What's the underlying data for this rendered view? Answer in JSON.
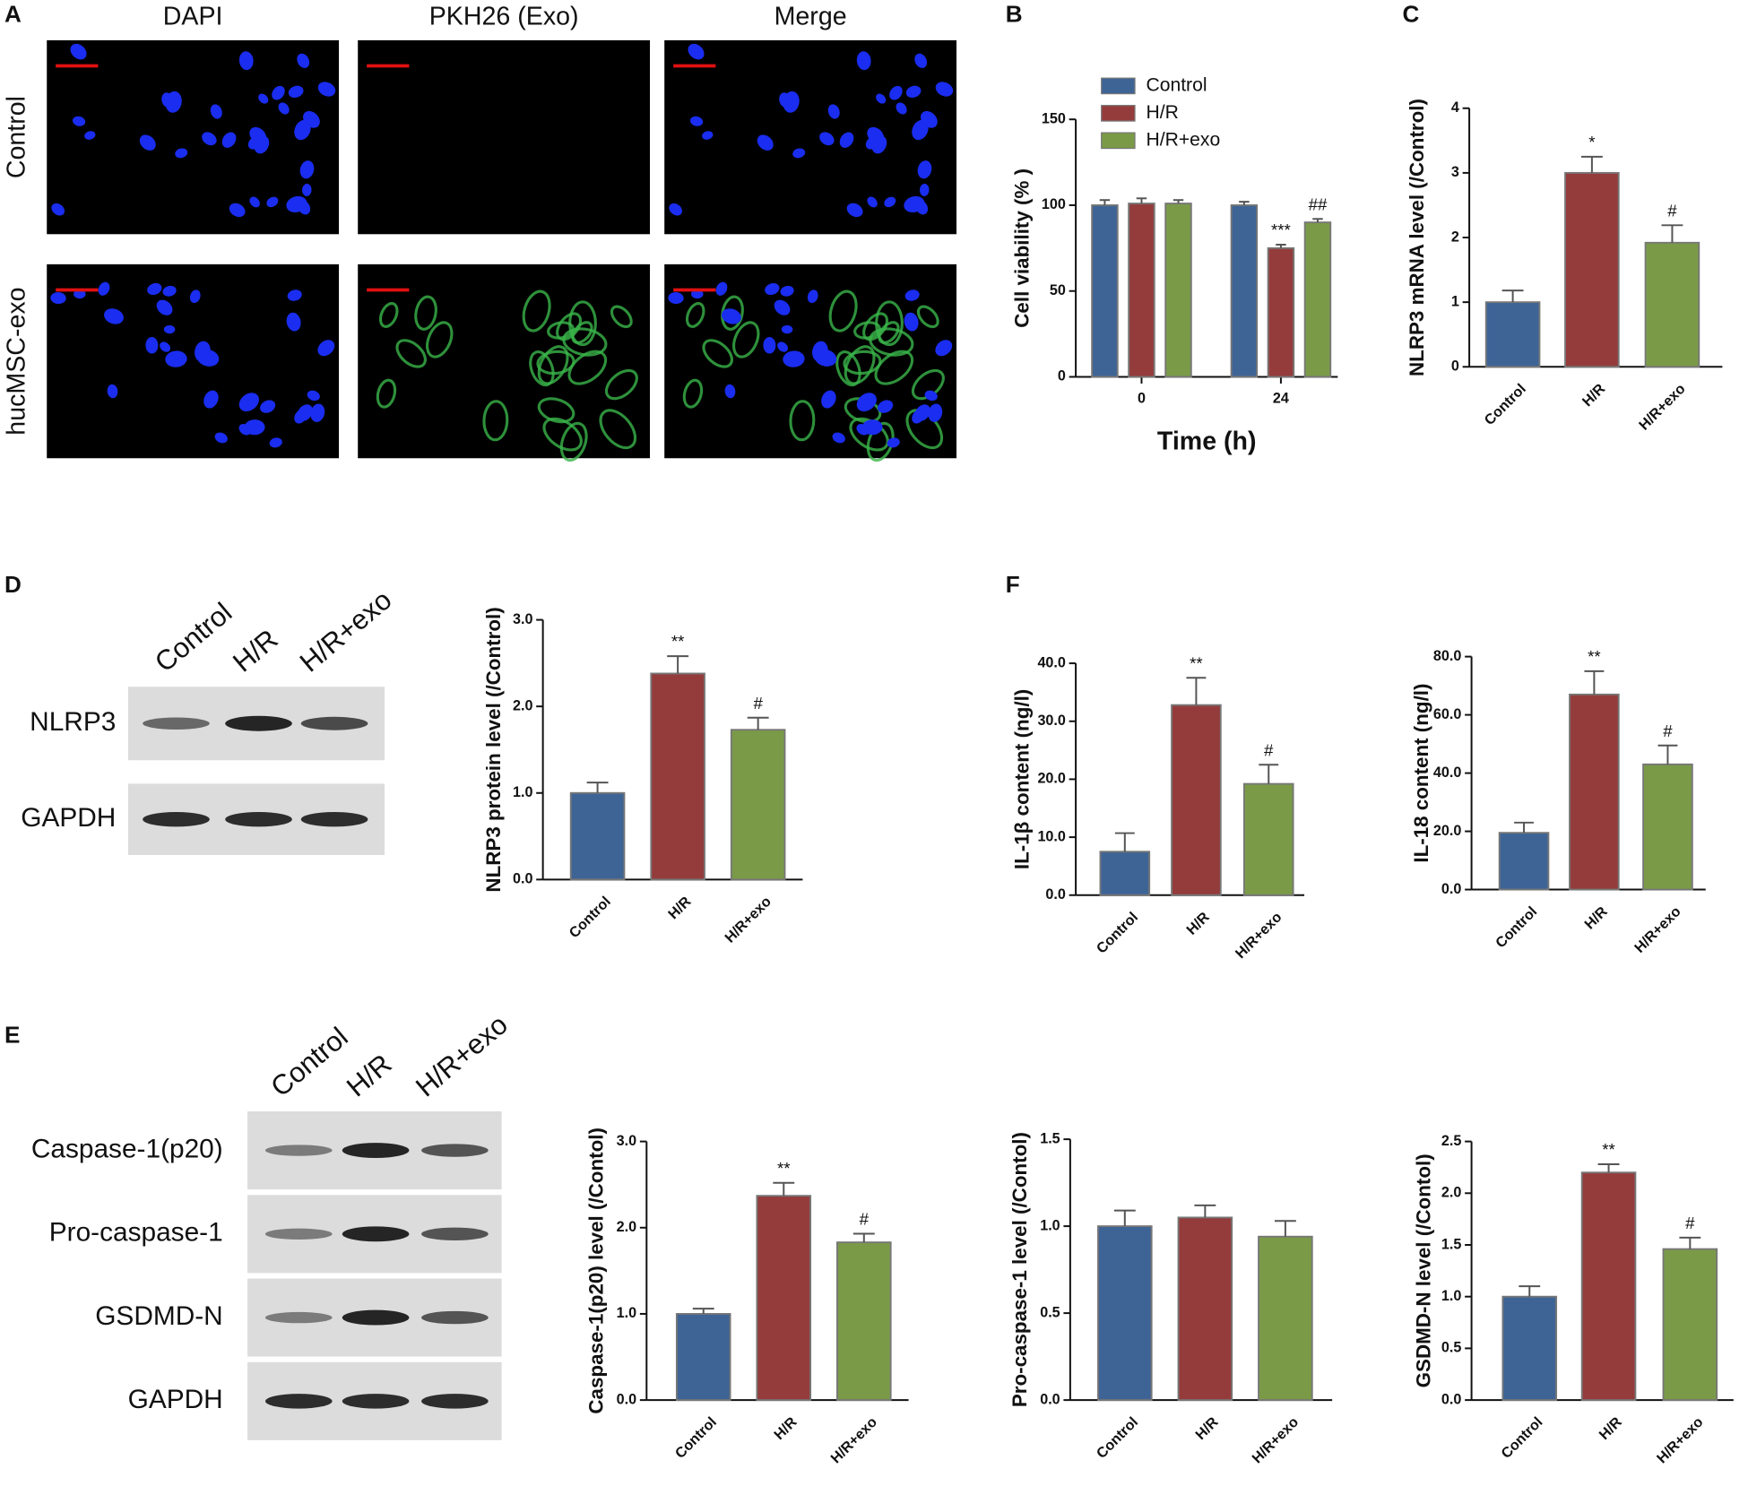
{
  "panel_labels": [
    "A",
    "B",
    "C",
    "D",
    "E",
    "F"
  ],
  "micrographs": {
    "columns": [
      "DAPI",
      "PKH26 (Exo)",
      "Merge"
    ],
    "rows": [
      "Control",
      "hucMSC-exo"
    ]
  },
  "blot_D": {
    "lanes": [
      "Control",
      "H/R",
      "H/R+exo"
    ],
    "rows": [
      "NLRP3",
      "GAPDH"
    ]
  },
  "blot_E": {
    "lanes": [
      "Control",
      "H/R",
      "H/R+exo"
    ],
    "rows": [
      "Caspase-1(p20)",
      "Pro-caspase-1",
      "GSDMD-N",
      "GAPDH"
    ]
  },
  "chart_data": [
    {
      "type": "grouped_bar",
      "xlabel": "Time (h)",
      "ylabel": "Cell viability (% )",
      "categories": [
        "0",
        "24"
      ],
      "ylim": [
        0,
        150
      ],
      "yticks": [
        0,
        50,
        100,
        150
      ],
      "grid": false,
      "legend": "top-left",
      "series": [
        {
          "name": "Control",
          "color": "#3e6496",
          "values": [
            100,
            100
          ],
          "errors": [
            3,
            2
          ],
          "annotations": [
            null,
            null
          ]
        },
        {
          "name": "H/R",
          "color": "#943c3c",
          "values": [
            101,
            75
          ],
          "errors": [
            3,
            2
          ],
          "annotations": [
            null,
            "***"
          ]
        },
        {
          "name": "H/R+exo",
          "color": "#7a9a48",
          "values": [
            101,
            90
          ],
          "errors": [
            2,
            2
          ],
          "annotations": [
            null,
            "##"
          ]
        }
      ]
    },
    {
      "type": "bar",
      "ylabel": "NLRP3 mRNA level (/Control)",
      "categories": [
        "Control",
        "H/R",
        "H/R+exo"
      ],
      "colors": [
        "#3e6496",
        "#943c3c",
        "#7a9a48"
      ],
      "values": [
        1.0,
        3.0,
        1.92
      ],
      "errors": [
        0.18,
        0.25,
        0.27
      ],
      "annotations": [
        null,
        "*",
        "#"
      ],
      "ylim": [
        0,
        4
      ],
      "yticks": [
        0,
        1,
        2,
        3,
        4
      ],
      "grid": false
    },
    {
      "type": "bar",
      "ylabel": "NLRP3 protein level (/Control)",
      "categories": [
        "Control",
        "H/R",
        "H/R+exo"
      ],
      "colors": [
        "#3e6496",
        "#943c3c",
        "#7a9a48"
      ],
      "values": [
        1.0,
        2.38,
        1.73
      ],
      "errors": [
        0.12,
        0.2,
        0.14
      ],
      "annotations": [
        null,
        "**",
        "#"
      ],
      "ylim": [
        0,
        3
      ],
      "yticks": [
        {
          "value": 0,
          "label": "0.0"
        },
        {
          "value": 1,
          "label": "1.0"
        },
        {
          "value": 2,
          "label": "2.0"
        },
        {
          "value": 3,
          "label": "3.0"
        }
      ],
      "grid": false
    },
    {
      "type": "bar",
      "ylabel": "IL-1β content  (ng/l)",
      "categories": [
        "Control",
        "H/R",
        "H/R+exo"
      ],
      "colors": [
        "#3e6496",
        "#943c3c",
        "#7a9a48"
      ],
      "values": [
        7.5,
        32.8,
        19.2
      ],
      "errors": [
        3.2,
        4.7,
        3.3
      ],
      "annotations": [
        null,
        "**",
        "#"
      ],
      "ylim": [
        0,
        40
      ],
      "yticks": [
        {
          "value": 0,
          "label": "0.0"
        },
        {
          "value": 10,
          "label": "10.0"
        },
        {
          "value": 20,
          "label": "20.0"
        },
        {
          "value": 30,
          "label": "30.0"
        },
        {
          "value": 40,
          "label": "40.0"
        }
      ],
      "grid": false
    },
    {
      "type": "bar",
      "ylabel": "IL-18 content  (ng/l)",
      "categories": [
        "Control",
        "H/R",
        "H/R+exo"
      ],
      "colors": [
        "#3e6496",
        "#943c3c",
        "#7a9a48"
      ],
      "values": [
        19.5,
        67,
        43
      ],
      "errors": [
        3.5,
        8,
        6.5
      ],
      "annotations": [
        null,
        "**",
        "#"
      ],
      "ylim": [
        0,
        80
      ],
      "yticks": [
        {
          "value": 0,
          "label": "0.0"
        },
        {
          "value": 20,
          "label": "20.0"
        },
        {
          "value": 40,
          "label": "40.0"
        },
        {
          "value": 60,
          "label": "60.0"
        },
        {
          "value": 80,
          "label": "80.0"
        }
      ],
      "grid": false
    },
    {
      "type": "bar",
      "ylabel": "Caspase-1(p20) level (/Contol)",
      "categories": [
        "Control",
        "H/R",
        "H/R+exo"
      ],
      "colors": [
        "#3e6496",
        "#943c3c",
        "#7a9a48"
      ],
      "values": [
        1.0,
        2.37,
        1.83
      ],
      "errors": [
        0.06,
        0.15,
        0.1
      ],
      "annotations": [
        null,
        "**",
        "#"
      ],
      "ylim": [
        0,
        3
      ],
      "yticks": [
        {
          "value": 0,
          "label": "0.0"
        },
        {
          "value": 1,
          "label": "1.0"
        },
        {
          "value": 2,
          "label": "2.0"
        },
        {
          "value": 3,
          "label": "3.0"
        }
      ],
      "grid": false
    },
    {
      "type": "bar",
      "ylabel": "Pro-caspase-1 level (/Contol)",
      "categories": [
        "Control",
        "H/R",
        "H/R+exo"
      ],
      "colors": [
        "#3e6496",
        "#943c3c",
        "#7a9a48"
      ],
      "values": [
        1.0,
        1.05,
        0.94
      ],
      "errors": [
        0.09,
        0.07,
        0.09
      ],
      "ylim": [
        0,
        1.5
      ],
      "yticks": [
        {
          "value": 0,
          "label": "0.0"
        },
        {
          "value": 0.5,
          "label": "0.5"
        },
        {
          "value": 1,
          "label": "1.0"
        },
        {
          "value": 1.5,
          "label": "1.5"
        }
      ],
      "grid": false
    },
    {
      "type": "bar",
      "ylabel": "GSDMD-N level (/Contol)",
      "categories": [
        "Control",
        "H/R",
        "H/R+exo"
      ],
      "colors": [
        "#3e6496",
        "#943c3c",
        "#7a9a48"
      ],
      "values": [
        1.0,
        2.2,
        1.46
      ],
      "errors": [
        0.1,
        0.08,
        0.11
      ],
      "annotations": [
        null,
        "**",
        "#"
      ],
      "ylim": [
        0,
        2.5
      ],
      "yticks": [
        {
          "value": 0,
          "label": "0.0"
        },
        {
          "value": 0.5,
          "label": "0.5"
        },
        {
          "value": 1,
          "label": "1.0"
        },
        {
          "value": 1.5,
          "label": "1.5"
        },
        {
          "value": 2,
          "label": "2.0"
        },
        {
          "value": 2.5,
          "label": "2.5"
        }
      ],
      "grid": false
    }
  ]
}
